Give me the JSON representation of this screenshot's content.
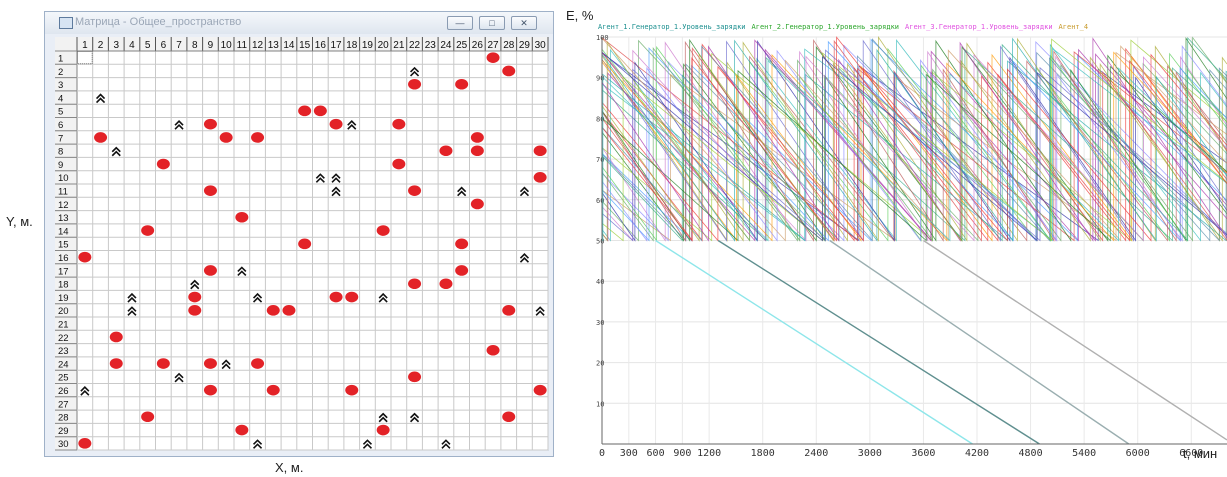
{
  "left_panel": {
    "window_title": "Матрица - Общее_пространство",
    "y_axis_label": "Y, м.",
    "x_axis_label": "X, м.",
    "columns": [
      "1",
      "2",
      "3",
      "4",
      "5",
      "6",
      "7",
      "8",
      "9",
      "10",
      "11",
      "12",
      "13",
      "14",
      "15",
      "16",
      "17",
      "18",
      "19",
      "20",
      "21",
      "22",
      "23",
      "24",
      "25",
      "26",
      "27",
      "28",
      "29",
      "30"
    ],
    "rows": [
      "1",
      "2",
      "3",
      "4",
      "5",
      "6",
      "7",
      "8",
      "9",
      "10",
      "11",
      "12",
      "13",
      "14",
      "15",
      "16",
      "17",
      "18",
      "19",
      "20",
      "21",
      "22",
      "23",
      "24",
      "25",
      "26",
      "27",
      "28",
      "29",
      "30"
    ],
    "selected_cell": {
      "col": 1,
      "row": 1
    },
    "generators": [
      [
        27,
        1
      ],
      [
        28,
        2
      ],
      [
        22,
        3
      ],
      [
        25,
        3
      ],
      [
        15,
        5
      ],
      [
        16,
        5
      ],
      [
        9,
        6
      ],
      [
        17,
        6
      ],
      [
        21,
        6
      ],
      [
        2,
        7
      ],
      [
        10,
        7
      ],
      [
        12,
        7
      ],
      [
        26,
        7
      ],
      [
        24,
        8
      ],
      [
        26,
        8
      ],
      [
        30,
        8
      ],
      [
        6,
        9
      ],
      [
        21,
        9
      ],
      [
        30,
        10
      ],
      [
        9,
        11
      ],
      [
        22,
        11
      ],
      [
        26,
        12
      ],
      [
        11,
        13
      ],
      [
        5,
        14
      ],
      [
        20,
        14
      ],
      [
        15,
        15
      ],
      [
        25,
        15
      ],
      [
        1,
        16
      ],
      [
        9,
        17
      ],
      [
        25,
        17
      ],
      [
        22,
        18
      ],
      [
        24,
        18
      ],
      [
        8,
        19
      ],
      [
        17,
        19
      ],
      [
        18,
        19
      ],
      [
        8,
        20
      ],
      [
        13,
        20
      ],
      [
        14,
        20
      ],
      [
        28,
        20
      ],
      [
        3,
        22
      ],
      [
        27,
        23
      ],
      [
        3,
        24
      ],
      [
        6,
        24
      ],
      [
        9,
        24
      ],
      [
        12,
        24
      ],
      [
        22,
        25
      ],
      [
        9,
        26
      ],
      [
        13,
        26
      ],
      [
        18,
        26
      ],
      [
        30,
        26
      ],
      [
        5,
        28
      ],
      [
        28,
        28
      ],
      [
        11,
        29
      ],
      [
        20,
        29
      ],
      [
        1,
        30
      ]
    ],
    "agents": [
      [
        22,
        2
      ],
      [
        2,
        4
      ],
      [
        7,
        6
      ],
      [
        18,
        6
      ],
      [
        3,
        8
      ],
      [
        16,
        10
      ],
      [
        17,
        10
      ],
      [
        17,
        11
      ],
      [
        25,
        11
      ],
      [
        29,
        11
      ],
      [
        29,
        16
      ],
      [
        11,
        17
      ],
      [
        8,
        18
      ],
      [
        4,
        19
      ],
      [
        12,
        19
      ],
      [
        20,
        19
      ],
      [
        4,
        20
      ],
      [
        30,
        20
      ],
      [
        10,
        24
      ],
      [
        7,
        25
      ],
      [
        1,
        26
      ],
      [
        20,
        28
      ],
      [
        22,
        28
      ],
      [
        12,
        30
      ],
      [
        19,
        30
      ],
      [
        24,
        30
      ]
    ],
    "colors": {
      "generator": "#e32227",
      "agent": "#111111",
      "grid_line": "#c9c9c9",
      "header_bg": "#f2f2f2"
    }
  },
  "chart_data": {
    "type": "line",
    "title": "",
    "ylabel": "E, %",
    "xlabel": "t, мин",
    "legend": [
      "Агент_1.Генератор_1.Уровень_зарядки",
      "Агент_2.Генератор_1.Уровень_зарядки",
      "Агент_3.Генератор_1.Уровень_зарядки",
      "Агент_4"
    ],
    "legend_colors": [
      "#1b8f8f",
      "#2aa52a",
      "#e050e0",
      "#c79a2b"
    ],
    "legend_placement": "top",
    "x_ticks": [
      "0",
      "300",
      "600",
      "900",
      "1200",
      "1800",
      "2400",
      "3000",
      "3600",
      "4200",
      "4800",
      "5400",
      "6000",
      "6600"
    ],
    "y_ticks": [
      "10",
      "20",
      "30",
      "40",
      "50",
      "60",
      "70",
      "80",
      "90",
      "100"
    ],
    "xlim": [
      0,
      7000
    ],
    "ylim": [
      0,
      100
    ],
    "grid": true,
    "sawtooth_band": {
      "min": 50,
      "max": 100,
      "x_end": 7000
    },
    "discharge_lines": [
      {
        "color": "#8ee6ea",
        "x": [
          600,
          4150
        ],
        "y": [
          50,
          0
        ]
      },
      {
        "color": "#5f8f8f",
        "x": [
          1300,
          4900
        ],
        "y": [
          50,
          0
        ]
      },
      {
        "color": "#9aaeb0",
        "x": [
          2550,
          5900
        ],
        "y": [
          50,
          0
        ]
      },
      {
        "color": "#b0b0b0",
        "x": [
          3600,
          7000
        ],
        "y": [
          50,
          1
        ]
      }
    ],
    "palette": [
      "#2f2fa8",
      "#1a7a1a",
      "#e33",
      "#3bb",
      "#a3a",
      "#aa3",
      "#49f",
      "#f90",
      "#6a6",
      "#b55",
      "#58a",
      "#c7c",
      "#5c5",
      "#88f",
      "#2aa",
      "#d44",
      "#9c3",
      "#66c",
      "#c96",
      "#3a8"
    ]
  }
}
